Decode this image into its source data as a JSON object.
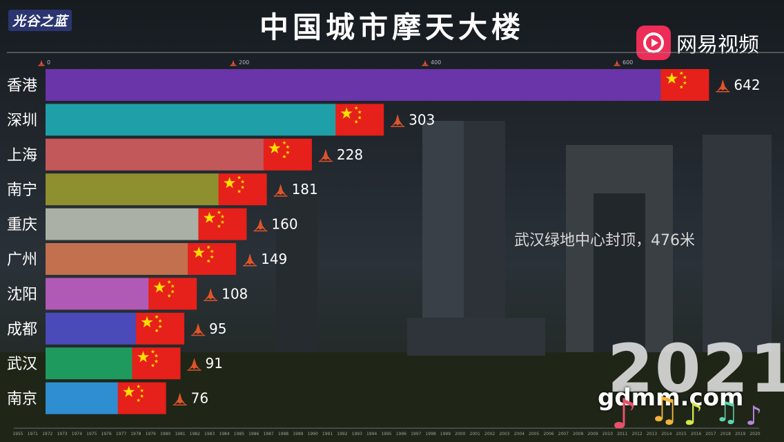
{
  "header": {
    "title": "中国城市摩天大楼",
    "logo_left": "光谷之蓝",
    "logo_right": "网易视频"
  },
  "overlay": {
    "event_text": "武汉绿地中心封顶，476米",
    "year": "2021",
    "watermark": "gdmm.com"
  },
  "colors": {
    "background": "#15191d",
    "flag_red": "#e6201a",
    "flag_star": "#ffde00",
    "logo_pink": "#ee2c58"
  },
  "chart_data": {
    "type": "bar",
    "orientation": "horizontal",
    "title": "中国城市摩天大楼",
    "categories": [
      "香港",
      "深圳",
      "上海",
      "南宁",
      "重庆",
      "广州",
      "沈阳",
      "成都",
      "武汉",
      "南京"
    ],
    "values": [
      642,
      303,
      228,
      181,
      160,
      149,
      108,
      95,
      91,
      76
    ],
    "bar_colors": [
      "#6a35a8",
      "#1fa0a8",
      "#c2585a",
      "#8e8f2e",
      "#aab0a6",
      "#c2704e",
      "#b05ab5",
      "#4a4ab8",
      "#1f9a5e",
      "#2f8ed0"
    ],
    "x_ticks": [
      0,
      200,
      400,
      600
    ],
    "xlim": [
      0,
      660
    ],
    "year_axis": [
      "1955",
      "1971",
      "1972",
      "1973",
      "1974",
      "1975",
      "1976",
      "1977",
      "1978",
      "1979",
      "1980",
      "1981",
      "1982",
      "1983",
      "1984",
      "1985",
      "1986",
      "1987",
      "1988",
      "1989",
      "1990",
      "1991",
      "1992",
      "1993",
      "1994",
      "1995",
      "1996",
      "1997",
      "1998",
      "1999",
      "2000",
      "2001",
      "2002",
      "2003",
      "2004",
      "2005",
      "2006",
      "2007",
      "2008",
      "2009",
      "2010",
      "2011",
      "2012",
      "2013",
      "2014",
      "2015",
      "2016",
      "2017",
      "2018",
      "2019",
      "2020"
    ],
    "current_year": "2021",
    "grid": false,
    "legend": "none"
  }
}
